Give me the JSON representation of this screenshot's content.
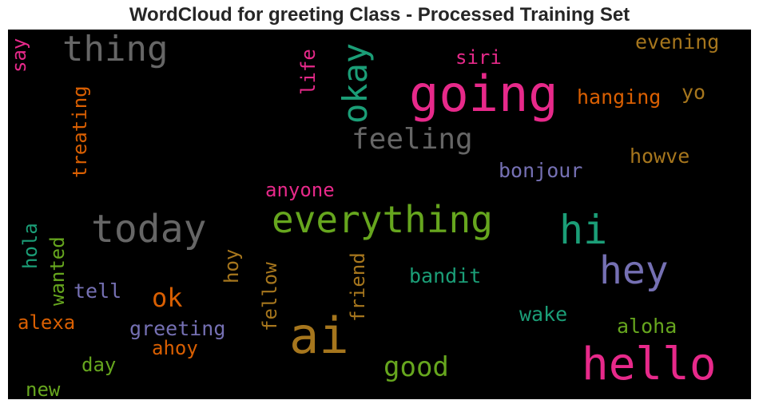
{
  "chart_data": {
    "type": "wordcloud",
    "title": "WordCloud for greeting Class - Processed Training Set",
    "palette": [
      "#1b9e77",
      "#d95f02",
      "#7570b3",
      "#e7298a",
      "#66a61e",
      "#e6ab02",
      "#a6761d",
      "#666666"
    ],
    "words": [
      {
        "text": "going",
        "size": 62,
        "color": "#e7298a",
        "vertical": false
      },
      {
        "text": "ai",
        "size": 62,
        "color": "#a6761d",
        "vertical": false
      },
      {
        "text": "hello",
        "size": 56,
        "color": "#e7298a",
        "vertical": false
      },
      {
        "text": "hi",
        "size": 50,
        "color": "#1b9e77",
        "vertical": false
      },
      {
        "text": "hey",
        "size": 48,
        "color": "#7570b3",
        "vertical": false
      },
      {
        "text": "today",
        "size": 48,
        "color": "#666666",
        "vertical": false
      },
      {
        "text": "everything",
        "size": 46,
        "color": "#66a61e",
        "vertical": false
      },
      {
        "text": "thing",
        "size": 44,
        "color": "#666666",
        "vertical": false
      },
      {
        "text": "okay",
        "size": 42,
        "color": "#1b9e77",
        "vertical": true
      },
      {
        "text": "feeling",
        "size": 36,
        "color": "#666666",
        "vertical": false
      },
      {
        "text": "good",
        "size": 34,
        "color": "#66a61e",
        "vertical": false
      },
      {
        "text": "ok",
        "size": 32,
        "color": "#d95f02",
        "vertical": false
      },
      {
        "text": "siri",
        "size": 24,
        "color": "#e7298a",
        "vertical": false
      },
      {
        "text": "evening",
        "size": 25,
        "color": "#a6761d",
        "vertical": false
      },
      {
        "text": "hanging",
        "size": 25,
        "color": "#d95f02",
        "vertical": false
      },
      {
        "text": "yo",
        "size": 25,
        "color": "#a6761d",
        "vertical": false
      },
      {
        "text": "howve",
        "size": 25,
        "color": "#a6761d",
        "vertical": false
      },
      {
        "text": "bonjour",
        "size": 25,
        "color": "#7570b3",
        "vertical": false
      },
      {
        "text": "anyone",
        "size": 24,
        "color": "#e7298a",
        "vertical": false
      },
      {
        "text": "bandit",
        "size": 25,
        "color": "#1b9e77",
        "vertical": false
      },
      {
        "text": "wake",
        "size": 25,
        "color": "#1b9e77",
        "vertical": false
      },
      {
        "text": "aloha",
        "size": 25,
        "color": "#66a61e",
        "vertical": false
      },
      {
        "text": "greeting",
        "size": 25,
        "color": "#7570b3",
        "vertical": false
      },
      {
        "text": "ahoy",
        "size": 24,
        "color": "#d95f02",
        "vertical": false
      },
      {
        "text": "tell",
        "size": 25,
        "color": "#7570b3",
        "vertical": false
      },
      {
        "text": "alexa",
        "size": 24,
        "color": "#d95f02",
        "vertical": false
      },
      {
        "text": "day",
        "size": 24,
        "color": "#66a61e",
        "vertical": false
      },
      {
        "text": "new",
        "size": 24,
        "color": "#66a61e",
        "vertical": false
      },
      {
        "text": "say",
        "size": 24,
        "color": "#e7298a",
        "vertical": true
      },
      {
        "text": "life",
        "size": 24,
        "color": "#e7298a",
        "vertical": true
      },
      {
        "text": "treating",
        "size": 24,
        "color": "#d95f02",
        "vertical": true
      },
      {
        "text": "hola",
        "size": 24,
        "color": "#1b9e77",
        "vertical": true
      },
      {
        "text": "wanted",
        "size": 24,
        "color": "#66a61e",
        "vertical": true
      },
      {
        "text": "hoy",
        "size": 24,
        "color": "#a6761d",
        "vertical": true
      },
      {
        "text": "fellow",
        "size": 24,
        "color": "#a6761d",
        "vertical": true
      },
      {
        "text": "friend",
        "size": 24,
        "color": "#a6761d",
        "vertical": true
      }
    ]
  }
}
